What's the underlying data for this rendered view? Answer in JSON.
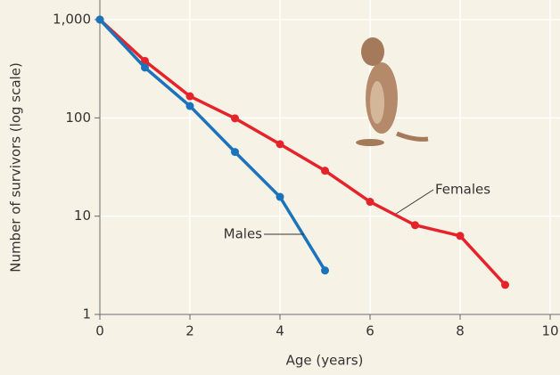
{
  "chart_data": {
    "type": "line",
    "xlabel": "Age (years)",
    "ylabel": "Number of survivors (log scale)",
    "x": [
      0,
      1,
      2,
      3,
      4,
      5,
      6,
      7,
      8,
      9
    ],
    "series": [
      {
        "name": "Females",
        "color": "#e5232b",
        "values": [
          1000,
          380,
          166,
          99,
          54,
          29,
          14,
          8.1,
          6.3,
          2.0
        ]
      },
      {
        "name": "Males",
        "color": "#1b74bb",
        "values": [
          1000,
          325,
          132,
          45,
          15.7,
          2.8,
          null,
          null,
          null,
          null
        ]
      }
    ],
    "xlim": [
      0,
      10
    ],
    "xticks": [
      0,
      2,
      4,
      6,
      8,
      10
    ],
    "ylim": [
      1,
      1000
    ],
    "yticks": [
      1,
      10,
      100,
      {
        "value": 1000,
        "label": "1,000"
      }
    ],
    "log_y": true,
    "grid": true
  }
}
